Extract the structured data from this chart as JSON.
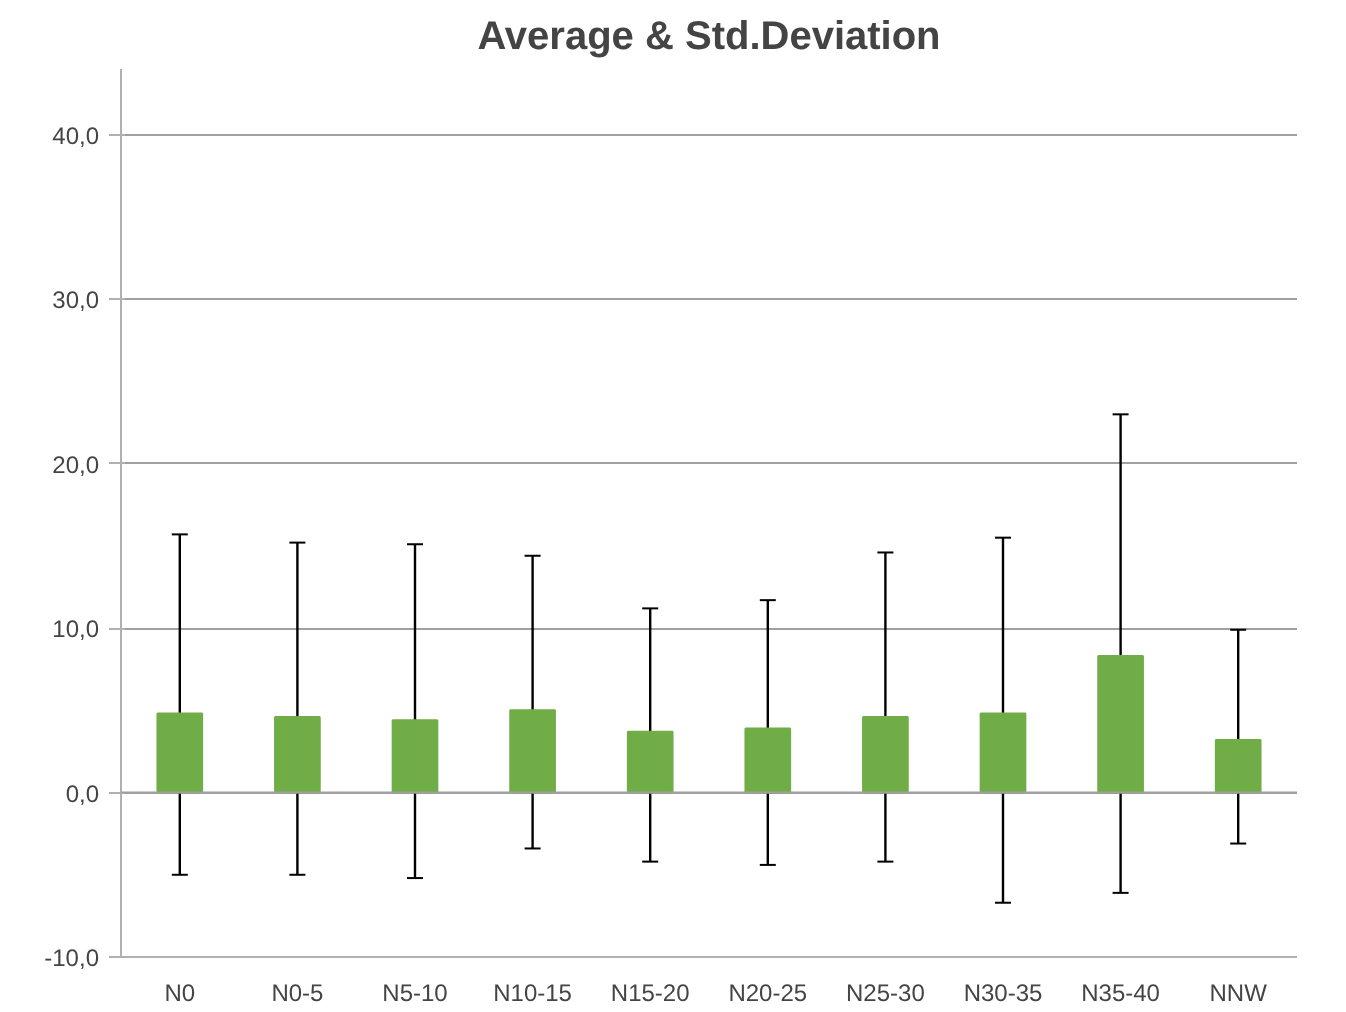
{
  "chart_data": {
    "type": "bar",
    "title": "Average & Std.Deviation",
    "categories": [
      "N0",
      "N0-5",
      "N5-10",
      "N10-15",
      "N15-20",
      "N20-25",
      "N25-30",
      "N30-35",
      "N35-40",
      "NNW"
    ],
    "values": [
      4.8,
      4.6,
      4.4,
      5.0,
      3.7,
      3.9,
      4.6,
      4.8,
      8.3,
      3.2
    ],
    "errors": [
      [
        -5.0,
        15.7
      ],
      [
        -5.0,
        15.2
      ],
      [
        -5.2,
        15.1
      ],
      [
        -3.4,
        14.4
      ],
      [
        -4.2,
        11.2
      ],
      [
        -4.4,
        11.7
      ],
      [
        -4.2,
        14.6
      ],
      [
        -6.7,
        15.5
      ],
      [
        -6.1,
        23.0
      ],
      [
        -3.1,
        9.9
      ]
    ],
    "color": "#70ad47",
    "ylim": [
      -10,
      44
    ],
    "yticks": [
      {
        "value": -10,
        "label": "-10,0"
      },
      {
        "value": 0,
        "label": "0,0"
      },
      {
        "value": 10,
        "label": "10,0"
      },
      {
        "value": 20,
        "label": "20,0"
      },
      {
        "value": 30,
        "label": "30,0"
      },
      {
        "value": 40,
        "label": "40,0"
      }
    ],
    "grid": "y"
  }
}
